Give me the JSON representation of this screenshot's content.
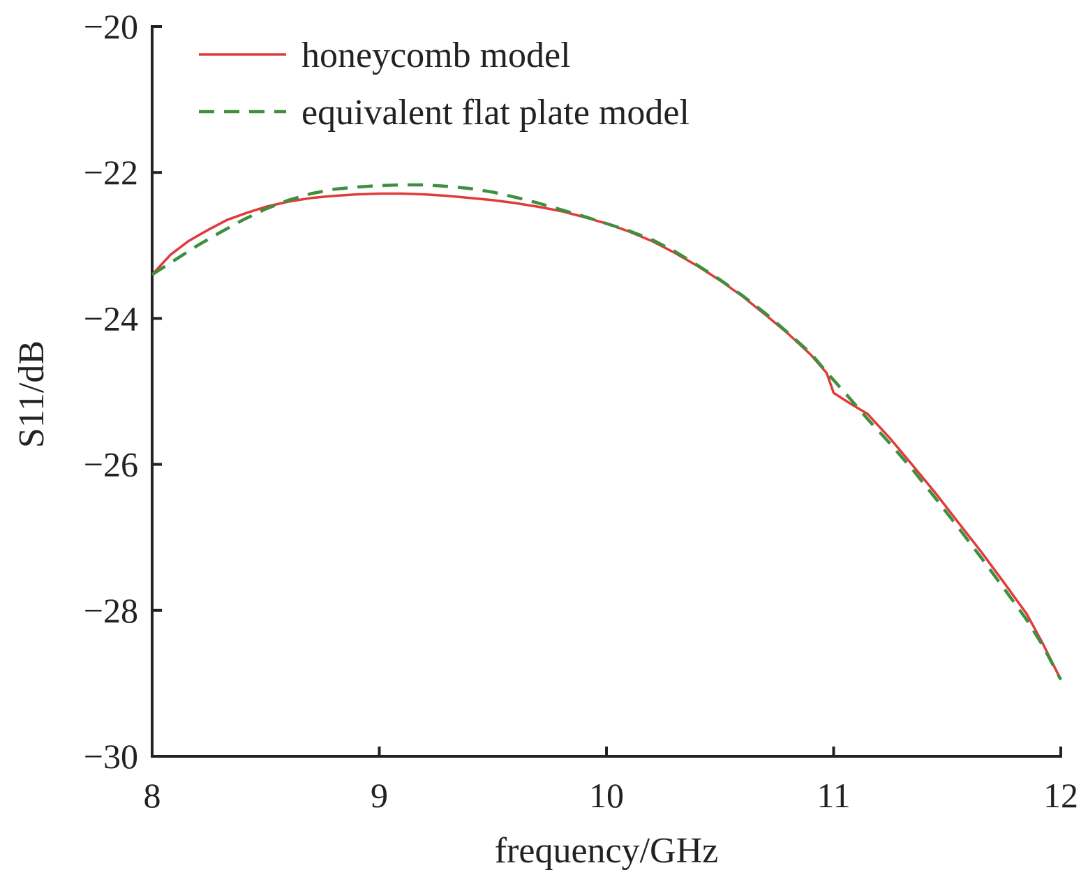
{
  "chart_data": {
    "type": "line",
    "xlabel": "frequency/GHz",
    "ylabel": "S11/dB",
    "xlim": [
      8,
      12
    ],
    "ylim": [
      -30,
      -20
    ],
    "xticks": [
      "8",
      "9",
      "10",
      "11",
      "12"
    ],
    "yticks": [
      "−20",
      "−22",
      "−24",
      "−26",
      "−28",
      "−30"
    ],
    "grid": false,
    "legend_position": "top-left",
    "series": [
      {
        "name": "honeycomb model",
        "color": "#e03a3a",
        "style": "solid",
        "x": [
          8.0,
          8.08,
          8.16,
          8.25,
          8.33,
          8.42,
          8.5,
          8.6,
          8.7,
          8.8,
          8.9,
          9.0,
          9.1,
          9.2,
          9.3,
          9.4,
          9.5,
          9.6,
          9.7,
          9.8,
          9.9,
          10.0,
          10.1,
          10.2,
          10.3,
          10.4,
          10.5,
          10.6,
          10.7,
          10.8,
          10.9,
          10.97,
          11.0,
          11.08,
          11.15,
          11.25,
          11.35,
          11.45,
          11.55,
          11.65,
          11.75,
          11.85,
          11.92,
          12.0
        ],
        "values": [
          -23.4,
          -23.13,
          -22.94,
          -22.78,
          -22.65,
          -22.55,
          -22.47,
          -22.4,
          -22.35,
          -22.32,
          -22.3,
          -22.29,
          -22.29,
          -22.3,
          -22.32,
          -22.35,
          -22.38,
          -22.42,
          -22.47,
          -22.53,
          -22.61,
          -22.7,
          -22.81,
          -22.94,
          -23.1,
          -23.28,
          -23.48,
          -23.7,
          -23.95,
          -24.21,
          -24.5,
          -24.75,
          -25.02,
          -25.18,
          -25.31,
          -25.65,
          -26.02,
          -26.4,
          -26.8,
          -27.2,
          -27.62,
          -28.05,
          -28.45,
          -28.95
        ]
      },
      {
        "name": "equivalent flat plate model",
        "color": "#3f8f3f",
        "style": "dashed",
        "x": [
          8.0,
          8.1,
          8.2,
          8.3,
          8.4,
          8.5,
          8.6,
          8.7,
          8.8,
          8.9,
          9.0,
          9.1,
          9.2,
          9.3,
          9.4,
          9.5,
          9.6,
          9.7,
          9.8,
          9.9,
          10.0,
          10.1,
          10.2,
          10.3,
          10.4,
          10.5,
          10.6,
          10.7,
          10.8,
          10.9,
          10.97,
          11.05,
          11.15,
          11.25,
          11.35,
          11.45,
          11.55,
          11.65,
          11.75,
          11.85,
          11.92,
          12.0
        ],
        "values": [
          -23.4,
          -23.2,
          -23.0,
          -22.82,
          -22.65,
          -22.5,
          -22.38,
          -22.29,
          -22.23,
          -22.2,
          -22.18,
          -22.17,
          -22.17,
          -22.19,
          -22.22,
          -22.27,
          -22.34,
          -22.42,
          -22.51,
          -22.6,
          -22.7,
          -22.8,
          -22.92,
          -23.08,
          -23.27,
          -23.47,
          -23.69,
          -23.93,
          -24.2,
          -24.48,
          -24.74,
          -25.02,
          -25.38,
          -25.72,
          -26.08,
          -26.47,
          -26.87,
          -27.28,
          -27.7,
          -28.13,
          -28.48,
          -28.95
        ]
      }
    ]
  }
}
